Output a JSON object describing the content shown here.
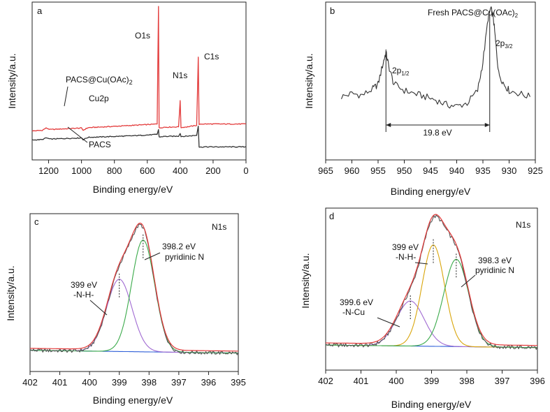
{
  "figure": {
    "colors": {
      "black": "#333333",
      "red": "#e33b3b",
      "purple": "#a06ad2",
      "green": "#3aaa4a",
      "blue": "#2e5fd8",
      "orange": "#d9a50a",
      "gray": "#555555"
    }
  },
  "chart_data": [
    {
      "panel": "a",
      "type": "line",
      "xlabel": "Binding energy/eV",
      "ylabel": "Intensity/a.u.",
      "xlim": [
        1300,
        0
      ],
      "x_reversed": true,
      "xticks": [
        1200,
        1000,
        800,
        600,
        400,
        200,
        0
      ],
      "series": [
        {
          "name": "PACS@Cu(OAc)2",
          "color": "#e33b3b",
          "x": [
            1300,
            1240,
            1215,
            1190,
            1100,
            1000,
            990,
            960,
            900,
            800,
            700,
            600,
            540,
            532,
            528,
            500,
            410,
            400,
            395,
            360,
            300,
            290,
            285,
            280,
            250,
            200,
            100,
            0
          ],
          "y": [
            140,
            144,
            160,
            150,
            155,
            160,
            145,
            163,
            166,
            172,
            178,
            184,
            188,
            1000,
            160,
            166,
            168,
            350,
            164,
            168,
            178,
            650,
            182,
            188,
            188,
            188,
            188,
            188
          ]
        },
        {
          "name": "PACS",
          "color": "#333333",
          "x": [
            1300,
            1240,
            1215,
            1190,
            1100,
            1000,
            990,
            960,
            900,
            800,
            700,
            600,
            540,
            532,
            528,
            500,
            410,
            400,
            395,
            360,
            300,
            290,
            285,
            280,
            250,
            200,
            100,
            0
          ],
          "y": [
            78,
            80,
            92,
            84,
            88,
            92,
            80,
            96,
            98,
            102,
            106,
            112,
            116,
            150,
            98,
            102,
            104,
            125,
            102,
            104,
            110,
            175,
            30,
            28,
            30,
            30,
            30,
            30
          ]
        }
      ],
      "annotations": [
        {
          "id": "O1s",
          "text": "O1s",
          "x": 528,
          "y": 800
        },
        {
          "id": "N1s",
          "text": "N1s",
          "x": 400,
          "y": 420
        },
        {
          "id": "C1s",
          "text": "C1s",
          "x": 270,
          "y": 540
        },
        {
          "id": "cu2p",
          "text": "Cu2p",
          "x": 950,
          "y": 225
        },
        {
          "id": "pacs",
          "text": "PACS",
          "x": 920,
          "y": 0
        }
      ],
      "ylim": [
        -60,
        1030
      ],
      "labels": {
        "letter": "a",
        "O1s": "O1s",
        "N1s": "N1s",
        "C1s": "C1s",
        "Cu2p": "Cu2p",
        "PACS": "PACS",
        "pacscu_main": "PACS@Cu(OAc)",
        "pacscu_sub": "2"
      }
    },
    {
      "panel": "b",
      "type": "line",
      "xlabel": "Binding energy/eV",
      "ylabel": "Intensity/a.u.",
      "xlim": [
        965,
        925
      ],
      "x_reversed": true,
      "xticks": [
        965,
        960,
        955,
        950,
        945,
        940,
        935,
        930,
        925
      ],
      "ylim": [
        0,
        100
      ],
      "series": [
        {
          "name": "Fresh PACS@Cu(OAc)2",
          "color": "#333333",
          "x": [
            962,
            960,
            958,
            956,
            955,
            954,
            953.5,
            953,
            952,
            950,
            948,
            946,
            944,
            942,
            940,
            938,
            936,
            935,
            934,
            933.5,
            933,
            932.5,
            932,
            931,
            930,
            928,
            926
          ],
          "y": [
            40,
            42,
            41,
            45,
            48,
            62,
            68,
            60,
            48,
            44,
            42,
            40,
            38,
            35,
            34,
            36,
            44,
            62,
            90,
            96,
            90,
            72,
            55,
            48,
            44,
            42,
            40
          ]
        }
      ],
      "separation": {
        "from": 953.5,
        "to": 933.7,
        "label": "19.8 eV"
      },
      "labels": {
        "letter": "b",
        "title_main": "Fresh PACS@Cu(OAc)",
        "title_sub": "2",
        "p12_main": "2p",
        "p12_sub": "1/2",
        "p32_main": "2p",
        "p32_sub": "3/2",
        "sep": "19.8 eV"
      }
    },
    {
      "panel": "c",
      "type": "line",
      "xlabel": "Binding energy/eV",
      "ylabel": "Intensity/a.u.",
      "xlim": [
        402,
        395
      ],
      "x_reversed": true,
      "xticks": [
        402,
        401,
        400,
        399,
        398,
        397,
        396,
        395
      ],
      "ylim": [
        -10,
        110
      ],
      "baseline": {
        "y0": 4,
        "slope": 0.3
      },
      "peaks": [
        {
          "name": "-N-H-",
          "center": 399.0,
          "height": 55,
          "width": 0.6,
          "color": "#a06ad2"
        },
        {
          "name": "pyridinic N",
          "center": 398.2,
          "height": 85,
          "width": 0.55,
          "color": "#3aaa4a"
        }
      ],
      "envelope_color": "#e33b3b",
      "raw_color": "#555555",
      "baseline_color": "#2e5fd8",
      "labels": {
        "letter": "c",
        "corner": "N1s",
        "peak1_energy": "399 eV",
        "peak1_name": "-N-H-",
        "peak2_energy": "398.2 eV",
        "peak2_name": "pyridinic N"
      }
    },
    {
      "panel": "d",
      "type": "line",
      "xlabel": "Binding energy/eV",
      "ylabel": "Intensity/a.u.",
      "xlim": [
        402,
        396
      ],
      "x_reversed": true,
      "xticks": [
        402,
        401,
        400,
        399,
        398,
        397,
        396
      ],
      "ylim": [
        -10,
        105
      ],
      "baseline": {
        "y0": 6,
        "slope": 0.3
      },
      "peaks": [
        {
          "name": "-N-Cu",
          "center": 399.6,
          "height": 32,
          "width": 0.55,
          "color": "#a06ad2"
        },
        {
          "name": "-N-H-",
          "center": 398.95,
          "height": 72,
          "width": 0.45,
          "color": "#d9a50a"
        },
        {
          "name": "pyridinic N",
          "center": 398.3,
          "height": 62,
          "width": 0.5,
          "color": "#3aaa4a"
        }
      ],
      "envelope_color": "#e33b3b",
      "raw_color": "#555555",
      "baseline_color": "#2e5fd8",
      "labels": {
        "letter": "d",
        "corner": "N1s",
        "peak1_energy": "399.6 eV",
        "peak1_name": "-N-Cu",
        "peak2_energy": "399 eV",
        "peak2_name": "-N-H-",
        "peak3_energy": "398.3 eV",
        "peak3_name": "pyridinic N"
      }
    }
  ]
}
